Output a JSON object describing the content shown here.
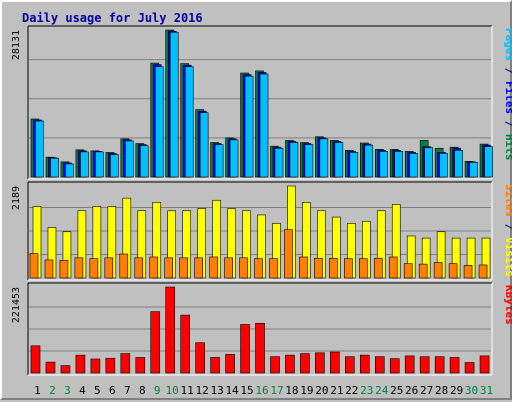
{
  "chart_data": {
    "type": "bar",
    "title": "Daily usage for July 2016",
    "days": [
      "1",
      "2",
      "3",
      "4",
      "5",
      "6",
      "7",
      "8",
      "9",
      "10",
      "11",
      "12",
      "13",
      "14",
      "15",
      "16",
      "17",
      "18",
      "19",
      "20",
      "21",
      "22",
      "23",
      "24",
      "25",
      "26",
      "27",
      "28",
      "29",
      "30",
      "31"
    ],
    "weekend_days": [
      "2",
      "3",
      "9",
      "10",
      "16",
      "17",
      "23",
      "24",
      "30",
      "31"
    ],
    "panels": [
      {
        "id": "hits",
        "ymax": 28131,
        "ymax_label": "28131",
        "series": [
          {
            "name": "Hits",
            "color": "#008040",
            "values": [
              11100,
              3800,
              2900,
              5200,
              5000,
              4700,
              7300,
              6400,
              21800,
              28131,
              21700,
              12900,
              6600,
              7500,
              19900,
              20300,
              5900,
              7000,
              6600,
              7700,
              7000,
              5100,
              6500,
              5300,
              5300,
              4900,
              7000,
              5500,
              5700,
              3000,
              6300
            ]
          },
          {
            "name": "Files",
            "color": "#0000ff",
            "values": [
              10900,
              3700,
              2700,
              5000,
              4900,
              4500,
              7100,
              6200,
              21500,
              27900,
              21400,
              12600,
              6400,
              7300,
              19600,
              20000,
              5700,
              6800,
              6400,
              7500,
              6800,
              4900,
              6300,
              5100,
              5100,
              4700,
              5800,
              4700,
              5500,
              2900,
              6100
            ]
          },
          {
            "name": "Pages",
            "color": "#00c0ff",
            "values": [
              10700,
              3600,
              2500,
              4800,
              4800,
              4300,
              6900,
              6000,
              21100,
              27700,
              21100,
              12300,
              6200,
              7100,
              19300,
              19700,
              5500,
              6600,
              6200,
              7300,
              6600,
              4700,
              6100,
              4900,
              4900,
              4500,
              5600,
              4500,
              5100,
              2800,
              5800
            ]
          }
        ],
        "legend_parts": [
          {
            "text": "Pages",
            "color": "#00c0ff"
          },
          {
            "text": " / ",
            "color": "#000080"
          },
          {
            "text": "Files",
            "color": "#0000ff"
          },
          {
            "text": " / ",
            "color": "#000080"
          },
          {
            "text": "Hits",
            "color": "#008040"
          }
        ]
      },
      {
        "id": "visits",
        "ymax": 2189,
        "ymax_label": "2189",
        "series": [
          {
            "name": "Visits",
            "color": "#ffff00",
            "values": [
              1700,
              1200,
              1100,
              1600,
              1700,
              1700,
              1900,
              1600,
              1800,
              1600,
              1600,
              1650,
              1850,
              1650,
              1600,
              1500,
              1300,
              2189,
              1800,
              1600,
              1450,
              1300,
              1350,
              1600,
              1750,
              1000,
              950,
              1100,
              950,
              950,
              950
            ]
          },
          {
            "name": "Sites",
            "color": "#ff8000",
            "values": [
              580,
              430,
              420,
              480,
              460,
              480,
              570,
              480,
              500,
              480,
              480,
              480,
              500,
              480,
              480,
              460,
              460,
              1150,
              500,
              470,
              470,
              460,
              460,
              470,
              500,
              340,
              330,
              370,
              340,
              300,
              310
            ]
          }
        ],
        "legend_parts": [
          {
            "text": "Sites",
            "color": "#ff8000"
          },
          {
            "text": " / ",
            "color": "#000080"
          },
          {
            "text": "Visits",
            "color": "#ffff00"
          }
        ]
      },
      {
        "id": "kbytes",
        "ymax": 221453,
        "ymax_label": "221453",
        "series": [
          {
            "name": "KBytes",
            "color": "#ff0000",
            "values": [
              70000,
              28000,
              19000,
              46000,
              36000,
              38000,
              50000,
              40000,
              158000,
              221453,
              149000,
              78000,
              40000,
              48000,
              125000,
              128000,
              42000,
              46000,
              50000,
              52000,
              54000,
              42000,
              46000,
              42000,
              37000,
              44000,
              42000,
              42000,
              40000,
              27000,
              44000
            ]
          }
        ],
        "legend_parts": [
          {
            "text": "KBytes",
            "color": "#ff0000"
          }
        ]
      }
    ]
  }
}
